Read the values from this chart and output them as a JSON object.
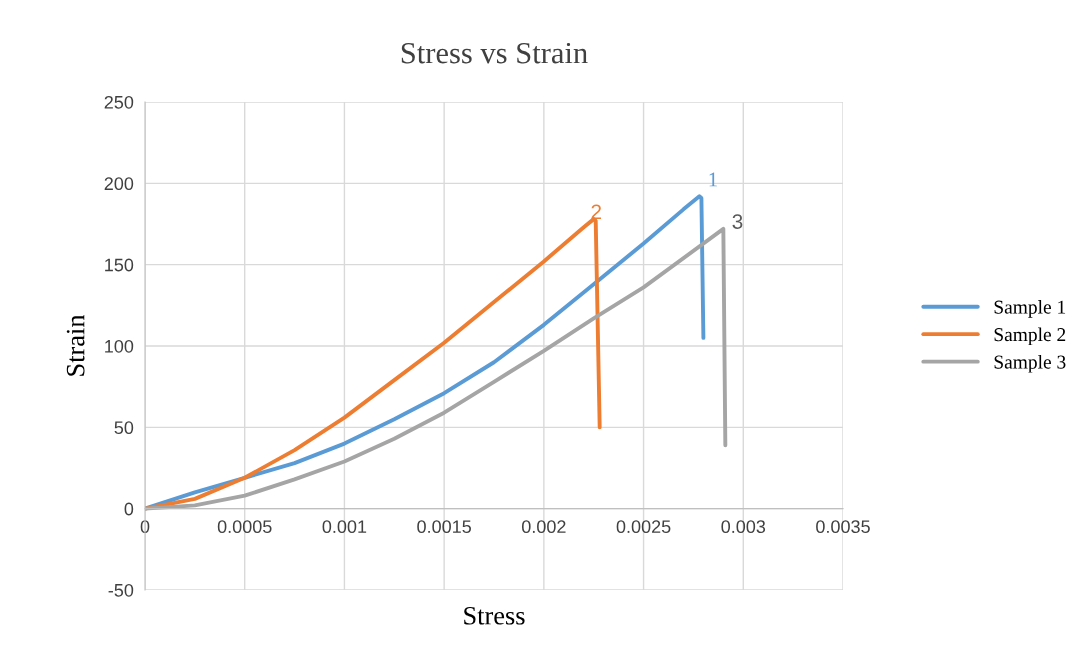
{
  "chart_data": {
    "type": "line",
    "title": "Stress vs Strain",
    "xlabel": "Stress",
    "ylabel": "Strain",
    "xlim": [
      0,
      0.0035
    ],
    "xticks": [
      0,
      0.0005,
      0.001,
      0.0015,
      0.002,
      0.0025,
      0.003,
      0.0035
    ],
    "ylim": [
      -50,
      250
    ],
    "yticks": [
      -50,
      0,
      50,
      100,
      150,
      200,
      250
    ],
    "grid": true,
    "legend": "right",
    "marker": "none",
    "series": [
      {
        "name": "Sample 1",
        "color": "#5b9bd5",
        "x": [
          0,
          0.00025,
          0.0005,
          0.00075,
          0.001,
          0.00125,
          0.0015,
          0.00175,
          0.002,
          0.00225,
          0.0025,
          0.0027,
          0.00278,
          0.00279,
          0.0028
        ],
        "values": [
          0,
          10,
          19,
          28,
          40,
          55,
          71,
          90,
          113,
          138,
          163,
          184,
          192,
          191,
          105
        ]
      },
      {
        "name": "Sample 2",
        "color": "#ed7d31",
        "x": [
          0,
          0.00025,
          0.0005,
          0.00075,
          0.001,
          0.00125,
          0.0015,
          0.00175,
          0.002,
          0.0022,
          0.00225,
          0.00226,
          0.00228
        ],
        "values": [
          0,
          6,
          19,
          36,
          56,
          79,
          102,
          127,
          152,
          173,
          178,
          177,
          50
        ]
      },
      {
        "name": "Sample 3",
        "color": "#a5a5a5",
        "x": [
          0,
          0.00025,
          0.0005,
          0.00075,
          0.001,
          0.00125,
          0.0015,
          0.00175,
          0.002,
          0.00225,
          0.0025,
          0.0029,
          0.00291
        ],
        "values": [
          0,
          2,
          8,
          18,
          29,
          43,
          59,
          78,
          97,
          117,
          136,
          172,
          39
        ]
      }
    ],
    "annotations": [
      {
        "text": "1",
        "x": 0.00278,
        "y": 192
      },
      {
        "text": "2",
        "x": 0.00225,
        "y": 178
      },
      {
        "text": "3",
        "x": 0.0029,
        "y": 172
      }
    ]
  }
}
